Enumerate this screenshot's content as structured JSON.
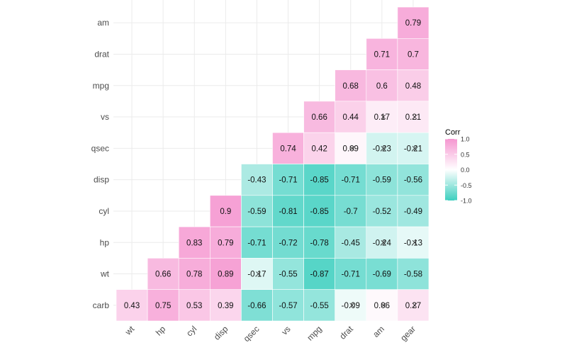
{
  "chart_data": {
    "type": "heatmap",
    "title": "",
    "x_categories": [
      "wt",
      "hp",
      "cyl",
      "disp",
      "qsec",
      "vs",
      "mpg",
      "drat",
      "am",
      "gear"
    ],
    "y_categories": [
      "am",
      "drat",
      "mpg",
      "vs",
      "qsec",
      "disp",
      "cyl",
      "hp",
      "wt",
      "carb"
    ],
    "values": [
      [
        null,
        null,
        null,
        null,
        null,
        null,
        null,
        null,
        null,
        0.79
      ],
      [
        null,
        null,
        null,
        null,
        null,
        null,
        null,
        null,
        0.71,
        0.7
      ],
      [
        null,
        null,
        null,
        null,
        null,
        null,
        null,
        0.68,
        0.6,
        0.48
      ],
      [
        null,
        null,
        null,
        null,
        null,
        null,
        0.66,
        0.44,
        0.17,
        0.21
      ],
      [
        null,
        null,
        null,
        null,
        null,
        0.74,
        0.42,
        0.09,
        -0.23,
        -0.21
      ],
      [
        null,
        null,
        null,
        null,
        -0.43,
        -0.71,
        -0.85,
        -0.71,
        -0.59,
        -0.56
      ],
      [
        null,
        null,
        null,
        0.9,
        -0.59,
        -0.81,
        -0.85,
        -0.7,
        -0.52,
        -0.49
      ],
      [
        null,
        null,
        0.83,
        0.79,
        -0.71,
        -0.72,
        -0.78,
        -0.45,
        -0.24,
        -0.13
      ],
      [
        null,
        0.66,
        0.78,
        0.89,
        -0.17,
        -0.55,
        -0.87,
        -0.71,
        -0.69,
        -0.58
      ],
      [
        0.43,
        0.75,
        0.53,
        0.39,
        -0.66,
        -0.57,
        -0.55,
        -0.09,
        0.06,
        0.27
      ]
    ],
    "insignificant": [
      [
        3,
        8
      ],
      [
        3,
        9
      ],
      [
        4,
        7
      ],
      [
        4,
        8
      ],
      [
        4,
        9
      ],
      [
        7,
        8
      ],
      [
        7,
        9
      ],
      [
        8,
        4
      ],
      [
        9,
        7
      ],
      [
        9,
        8
      ],
      [
        9,
        9
      ]
    ],
    "legend": {
      "title": "Corr",
      "ticks": [
        "1.0",
        "0.5",
        "0.0",
        "-0.5",
        "-1.0"
      ],
      "tick_values": [
        1,
        0.5,
        0,
        -0.5,
        -1
      ],
      "placement": "right"
    },
    "colors": {
      "low": "#3DCFBF",
      "mid": "#FFFFFF",
      "high": "#F596D0"
    },
    "range": [
      -1,
      1
    ],
    "grid": true
  }
}
